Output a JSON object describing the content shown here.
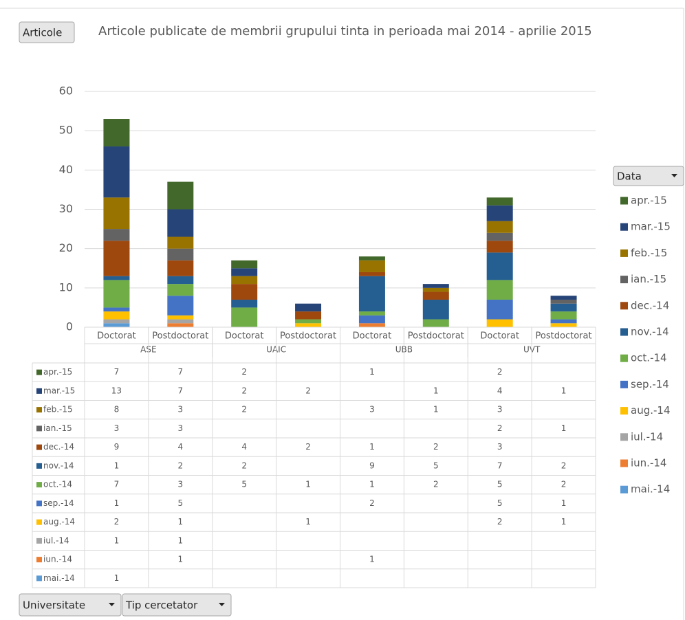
{
  "chart_data": {
    "type": "stacked_bar",
    "title": "Articole publicate de membrii grupului tinta in perioada mai 2014 - aprilie 2015",
    "buttons": {
      "values": "Articole",
      "legend": "Data",
      "axis": [
        "Universitate",
        "Tip cercetator"
      ]
    },
    "categories": [
      "Doctorat",
      "Postdoctorat",
      "Doctorat",
      "Postdoctorat",
      "Doctorat",
      "Postdoctorat",
      "Doctorat",
      "Postdoctorat"
    ],
    "groups": [
      "ASE",
      "UAIC",
      "UBB",
      "UVT"
    ],
    "ylim": [
      0,
      60
    ],
    "yticks": [
      0,
      10,
      20,
      30,
      40,
      50,
      60
    ],
    "grid": true,
    "series": [
      {
        "name": "apr.-15",
        "color": "#43682b",
        "values": [
          7,
          7,
          2,
          null,
          1,
          null,
          2,
          null
        ]
      },
      {
        "name": "mar.-15",
        "color": "#264478",
        "values": [
          13,
          7,
          2,
          2,
          null,
          1,
          4,
          1
        ]
      },
      {
        "name": "feb.-15",
        "color": "#997300",
        "values": [
          8,
          3,
          2,
          null,
          3,
          1,
          3,
          null
        ]
      },
      {
        "name": "ian.-15",
        "color": "#636363",
        "values": [
          3,
          3,
          null,
          null,
          null,
          null,
          2,
          1
        ]
      },
      {
        "name": "dec.-14",
        "color": "#9e480e",
        "values": [
          9,
          4,
          4,
          2,
          1,
          2,
          3,
          null
        ]
      },
      {
        "name": "nov.-14",
        "color": "#255e91",
        "values": [
          1,
          2,
          2,
          null,
          9,
          5,
          7,
          2
        ]
      },
      {
        "name": "oct.-14",
        "color": "#70ad47",
        "values": [
          7,
          3,
          5,
          1,
          1,
          2,
          5,
          2
        ]
      },
      {
        "name": "sep.-14",
        "color": "#4472c4",
        "values": [
          1,
          5,
          null,
          null,
          2,
          null,
          5,
          1
        ]
      },
      {
        "name": "aug.-14",
        "color": "#ffc000",
        "values": [
          2,
          1,
          null,
          1,
          null,
          null,
          2,
          1
        ]
      },
      {
        "name": "iul.-14",
        "color": "#a5a5a5",
        "values": [
          1,
          1,
          null,
          null,
          null,
          null,
          null,
          null
        ]
      },
      {
        "name": "iun.-14",
        "color": "#ed7d31",
        "values": [
          null,
          1,
          null,
          null,
          1,
          null,
          null,
          null
        ]
      },
      {
        "name": "mai.-14",
        "color": "#5b9bd5",
        "values": [
          1,
          null,
          null,
          null,
          null,
          null,
          null,
          null
        ]
      }
    ]
  }
}
